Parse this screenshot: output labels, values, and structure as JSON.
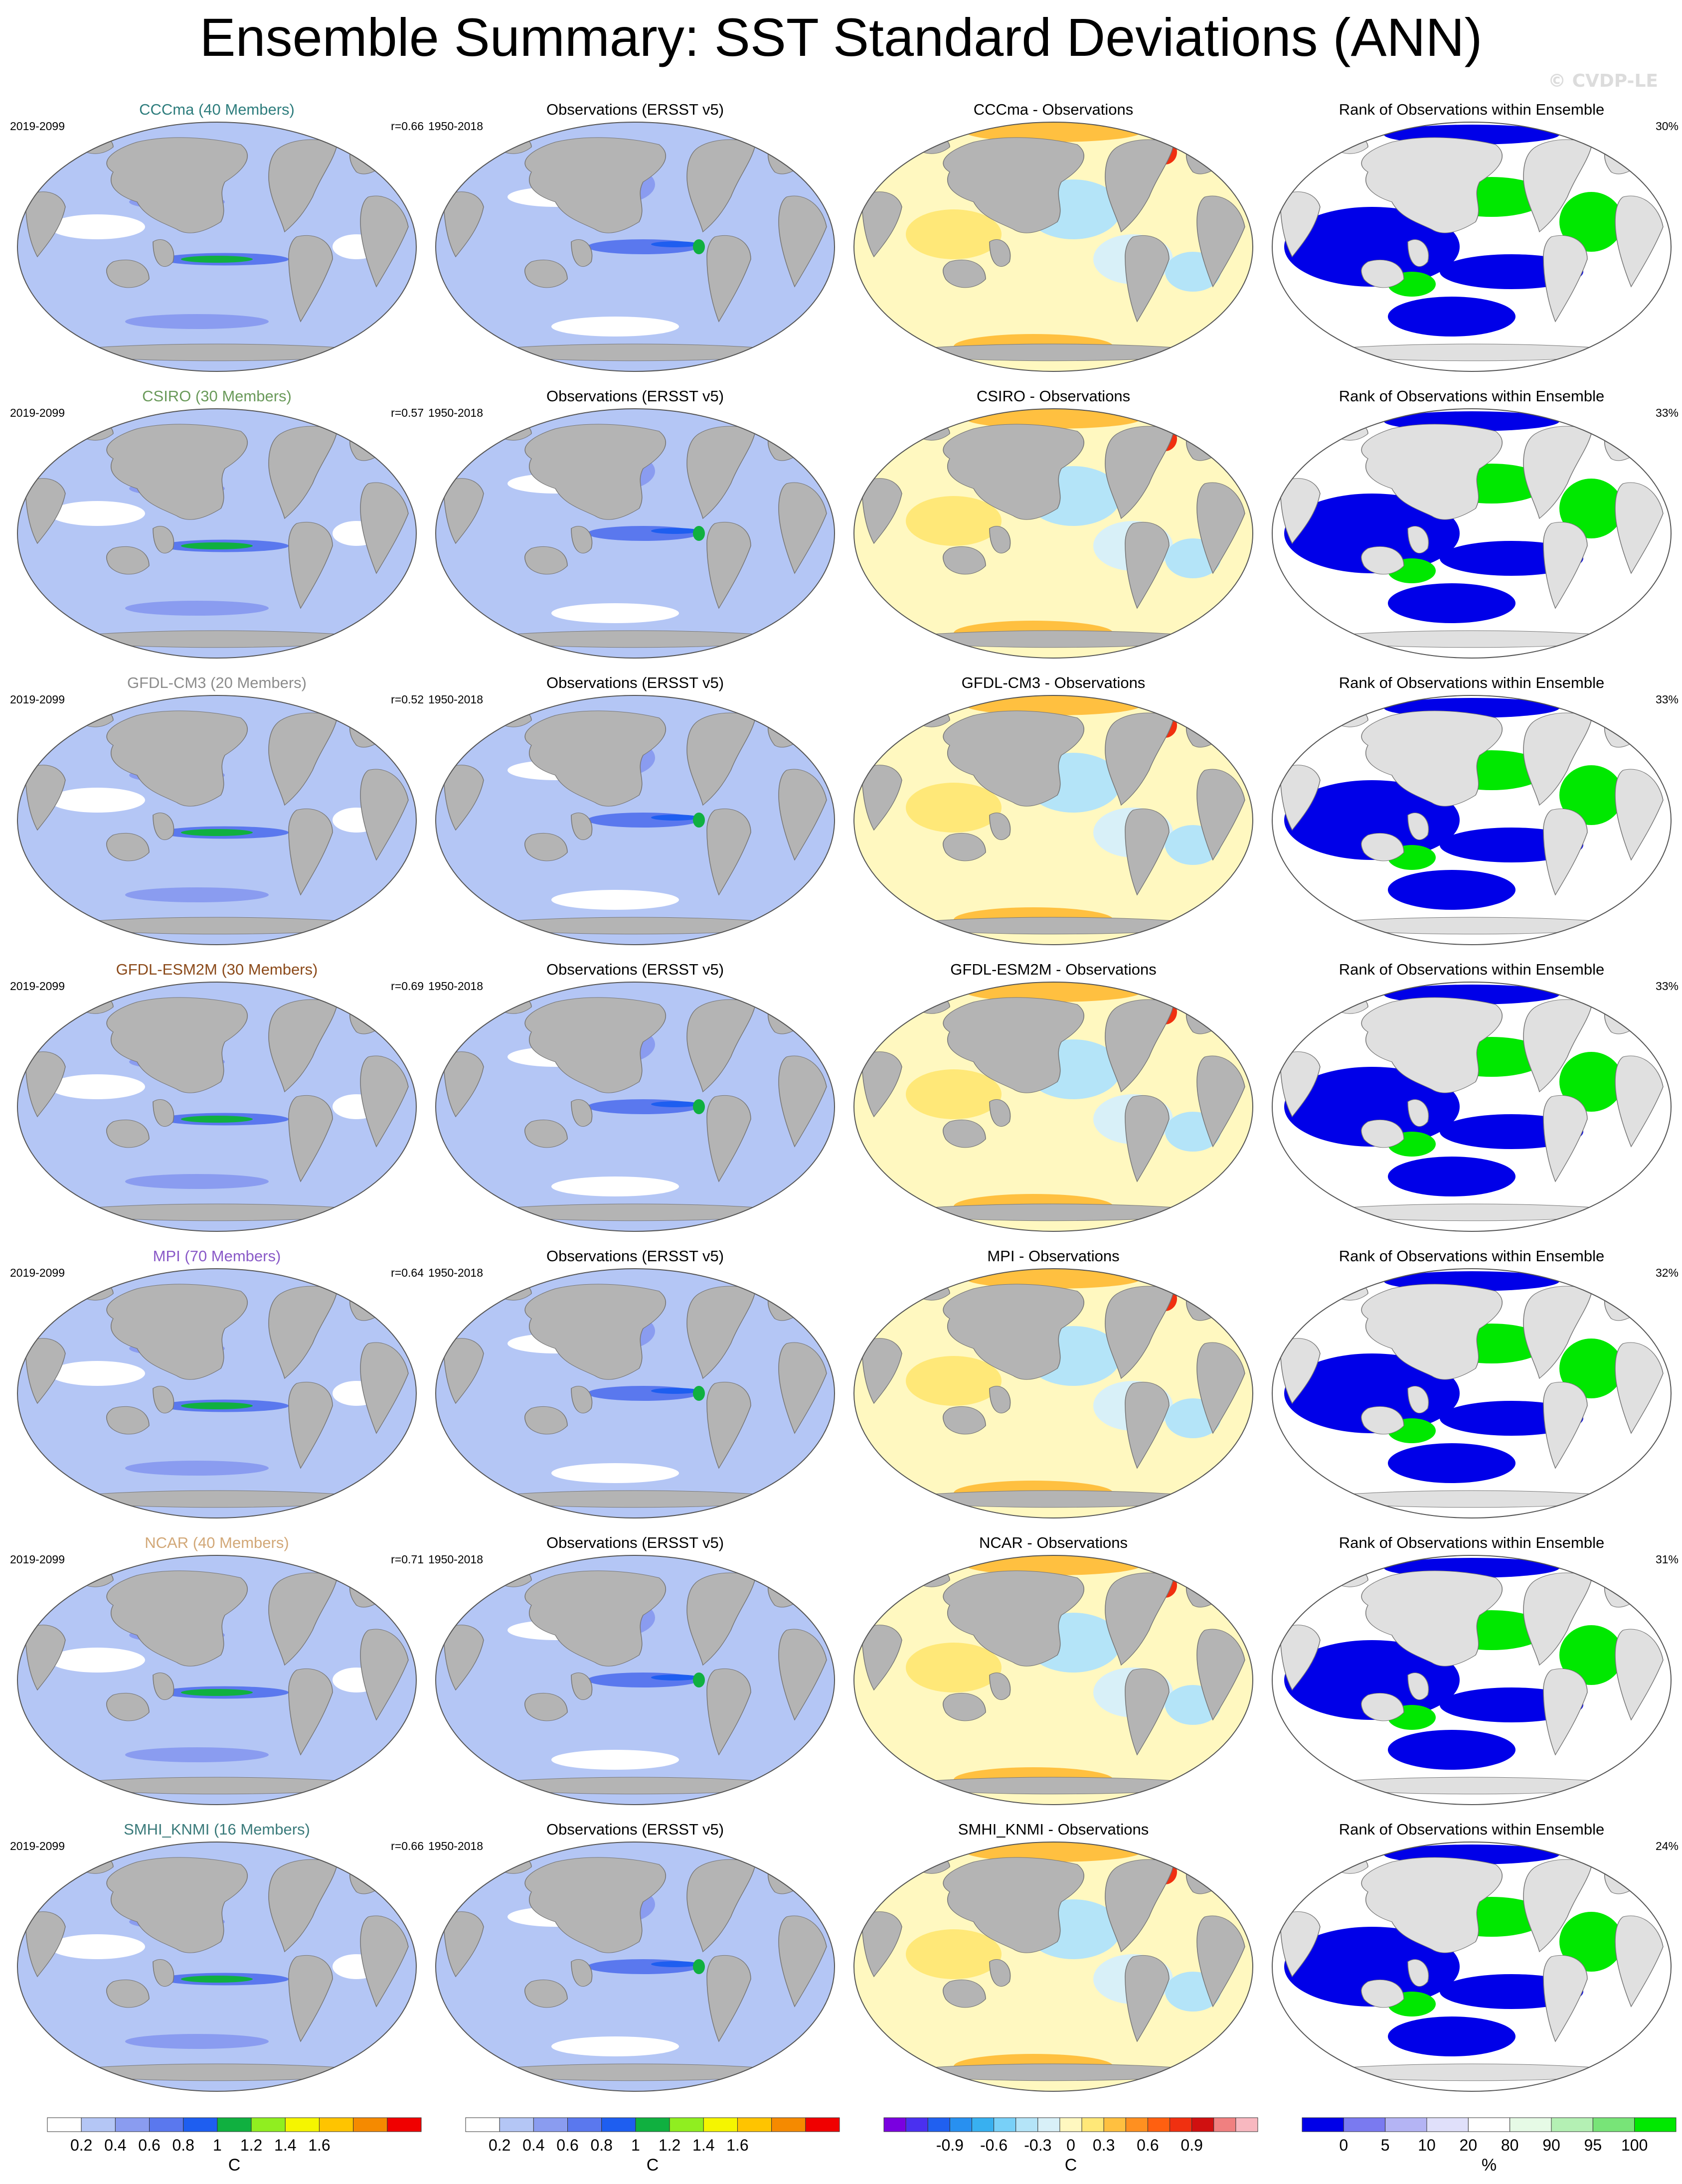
{
  "title": "Ensemble Summary: SST Standard Deviations (ANN)",
  "watermark": "© CVDP-LE",
  "column_titles": {
    "observations": "Observations (ERSST v5)",
    "rank": "Rank of Observations within Ensemble"
  },
  "model_period": "2019-2099",
  "obs_period": "1950-2018",
  "rows": [
    {
      "model": "CCCma",
      "title": "CCCma (40 Members)",
      "color": "#2e7d7d",
      "r": "r=0.66",
      "diff_title": "CCCma - Observations",
      "rank_pct": "30%"
    },
    {
      "model": "CSIRO",
      "title": "CSIRO (30 Members)",
      "color": "#6a9a5a",
      "r": "r=0.57",
      "diff_title": "CSIRO - Observations",
      "rank_pct": "33%"
    },
    {
      "model": "GFDL-CM3",
      "title": "GFDL-CM3 (20 Members)",
      "color": "#8c8c8c",
      "r": "r=0.52",
      "diff_title": "GFDL-CM3 - Observations",
      "rank_pct": "33%"
    },
    {
      "model": "GFDL-ESM2M",
      "title": "GFDL-ESM2M (30 Members)",
      "color": "#8b4a1a",
      "r": "r=0.69",
      "diff_title": "GFDL-ESM2M - Observations",
      "rank_pct": "33%"
    },
    {
      "model": "MPI",
      "title": "MPI (70 Members)",
      "color": "#8a5ac8",
      "r": "r=0.64",
      "diff_title": "MPI - Observations",
      "rank_pct": "32%"
    },
    {
      "model": "NCAR",
      "title": "NCAR (40 Members)",
      "color": "#d2a878",
      "r": "r=0.71",
      "diff_title": "NCAR - Observations",
      "rank_pct": "31%"
    },
    {
      "model": "SMHI_KNMI",
      "title": "SMHI_KNMI (16 Members)",
      "color": "#3a7a7a",
      "r": "r=0.66",
      "diff_title": "SMHI_KNMI - Observations",
      "rank_pct": "24%"
    }
  ],
  "chart_data": {
    "type": "heatmap",
    "colorbars": [
      {
        "id": "stddev",
        "unit": "C",
        "ticks": [
          "0.2",
          "0.4",
          "0.6",
          "0.8",
          "1",
          "1.2",
          "1.4",
          "1.6"
        ],
        "colors": [
          "#ffffff",
          "#b4c6f5",
          "#8a9cf0",
          "#5a78ee",
          "#1e5ef0",
          "#10b040",
          "#90ee20",
          "#f5f500",
          "#ffc400",
          "#f58a00",
          "#f00000"
        ]
      },
      {
        "id": "diff",
        "unit": "C",
        "ticks": [
          "-0.9",
          "-0.6",
          "-0.3",
          "0",
          "0.3",
          "0.6",
          "0.9"
        ],
        "colors": [
          "#7a00e0",
          "#4a30f0",
          "#2060f0",
          "#2890f0",
          "#38b0f0",
          "#78d0f8",
          "#b4e4f8",
          "#d8f0f8",
          "#fff8c0",
          "#ffe878",
          "#ffc040",
          "#ff9020",
          "#ff6010",
          "#f03010",
          "#d01010",
          "#f08080",
          "#f8b8c0"
        ]
      },
      {
        "id": "rank",
        "unit": "%",
        "ticks": [
          "0",
          "5",
          "10",
          "20",
          "80",
          "90",
          "95",
          "100"
        ],
        "colors": [
          "#0000e8",
          "#7a7af0",
          "#b4b4f4",
          "#e0e0fa",
          "#ffffff",
          "#e6fae6",
          "#b4f0b4",
          "#78e478",
          "#00e800"
        ]
      }
    ],
    "panels_per_row": [
      "model ensemble SST std dev",
      "observed SST std dev",
      "model minus observations",
      "rank of observations within ensemble"
    ]
  }
}
